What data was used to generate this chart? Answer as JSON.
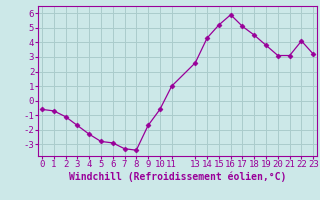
{
  "x": [
    0,
    1,
    2,
    3,
    4,
    5,
    6,
    7,
    8,
    9,
    10,
    11,
    13,
    14,
    15,
    16,
    17,
    18,
    19,
    20,
    21,
    22,
    23
  ],
  "y": [
    -0.6,
    -0.7,
    -1.1,
    -1.7,
    -2.3,
    -2.8,
    -2.9,
    -3.3,
    -3.4,
    -1.7,
    -0.6,
    1.0,
    2.6,
    4.3,
    5.2,
    5.9,
    5.1,
    4.5,
    3.8,
    3.1,
    3.1,
    4.1,
    3.2
  ],
  "xticks": [
    0,
    1,
    2,
    3,
    4,
    5,
    6,
    7,
    8,
    9,
    10,
    11,
    13,
    14,
    15,
    16,
    17,
    18,
    19,
    20,
    21,
    22,
    23
  ],
  "yticks": [
    -3,
    -2,
    -1,
    0,
    1,
    2,
    3,
    4,
    5,
    6
  ],
  "ylim": [
    -3.8,
    6.5
  ],
  "xlim": [
    -0.3,
    23.3
  ],
  "xlabel": "Windchill (Refroidissement éolien,°C)",
  "line_color": "#990099",
  "marker": "D",
  "marker_size": 2.5,
  "bg_color": "#cce8e8",
  "grid_color": "#aacccc",
  "tick_color": "#990099",
  "label_color": "#990099",
  "font_size": 6.5,
  "xlabel_fontsize": 7.0
}
